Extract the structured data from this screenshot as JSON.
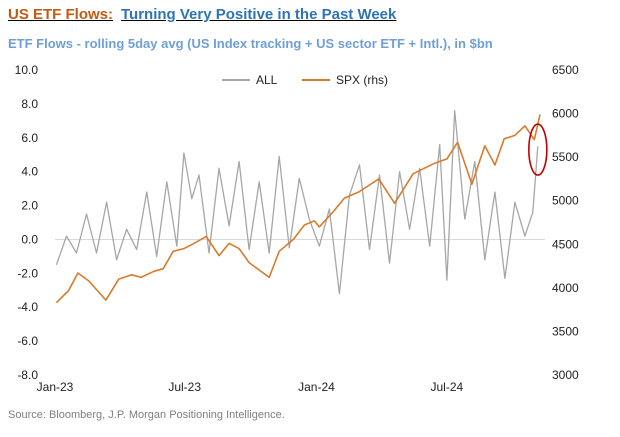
{
  "header": {
    "title_lead": "US ETF Flows:",
    "title_tail": "Turning Very Positive in the Past Week",
    "subtitle": "ETF Flows - rolling 5day avg (US Index tracking + US sector ETF + Intl.), in $bn"
  },
  "footer": {
    "source": "Source: Bloomberg, J.P. Morgan Positioning Intelligence."
  },
  "chart_data": {
    "type": "line",
    "title": "ETF Flows - rolling 5day avg (US Index tracking + US sector ETF + Intl.), in $bn",
    "x_tick_labels": [
      "Jan-23",
      "Jul-23",
      "Jan-24",
      "Jul-24"
    ],
    "x_tick_dates": [
      "2023-01-01",
      "2023-07-01",
      "2024-01-01",
      "2024-07-01"
    ],
    "x_range": [
      "2023-01-01",
      "2024-11-15"
    ],
    "y_left": {
      "ylim": [
        -8,
        10
      ],
      "ticks": [
        "-8.0",
        "-6.0",
        "-4.0",
        "-2.0",
        "0.0",
        "2.0",
        "4.0",
        "6.0",
        "8.0",
        "10.0"
      ]
    },
    "y_right": {
      "ylim": [
        3000,
        6500
      ],
      "ticks": [
        "3000",
        "3500",
        "4000",
        "4500",
        "5000",
        "5500",
        "6000",
        "6500"
      ]
    },
    "zero_line": true,
    "legend": {
      "placement": "top-center"
    },
    "series": [
      {
        "name": "ALL",
        "axis": "left",
        "color": "#a6a6a6",
        "points": [
          [
            "2023-01-03",
            -1.5
          ],
          [
            "2023-01-17",
            0.2
          ],
          [
            "2023-01-31",
            -0.8
          ],
          [
            "2023-02-14",
            1.5
          ],
          [
            "2023-02-28",
            -0.8
          ],
          [
            "2023-03-14",
            2.2
          ],
          [
            "2023-03-28",
            -1.2
          ],
          [
            "2023-04-11",
            0.6
          ],
          [
            "2023-04-25",
            -0.6
          ],
          [
            "2023-05-09",
            2.8
          ],
          [
            "2023-05-23",
            -1.0
          ],
          [
            "2023-06-06",
            3.4
          ],
          [
            "2023-06-20",
            -0.4
          ],
          [
            "2023-06-30",
            5.1
          ],
          [
            "2023-07-11",
            2.4
          ],
          [
            "2023-07-21",
            3.8
          ],
          [
            "2023-08-04",
            -0.8
          ],
          [
            "2023-08-18",
            4.2
          ],
          [
            "2023-09-01",
            0.8
          ],
          [
            "2023-09-15",
            4.6
          ],
          [
            "2023-09-29",
            -0.6
          ],
          [
            "2023-10-13",
            3.4
          ],
          [
            "2023-10-27",
            -0.8
          ],
          [
            "2023-11-10",
            4.9
          ],
          [
            "2023-11-24",
            -0.5
          ],
          [
            "2023-12-08",
            3.6
          ],
          [
            "2023-12-22",
            1.2
          ],
          [
            "2024-01-05",
            -0.4
          ],
          [
            "2024-01-19",
            1.8
          ],
          [
            "2024-02-02",
            -3.2
          ],
          [
            "2024-02-16",
            2.6
          ],
          [
            "2024-03-01",
            4.4
          ],
          [
            "2024-03-15",
            -0.6
          ],
          [
            "2024-03-29",
            3.8
          ],
          [
            "2024-04-12",
            -1.4
          ],
          [
            "2024-04-26",
            4.0
          ],
          [
            "2024-05-10",
            0.6
          ],
          [
            "2024-05-24",
            4.2
          ],
          [
            "2024-06-07",
            -0.4
          ],
          [
            "2024-06-21",
            5.6
          ],
          [
            "2024-07-01",
            -2.4
          ],
          [
            "2024-07-12",
            7.6
          ],
          [
            "2024-07-26",
            1.2
          ],
          [
            "2024-08-09",
            4.6
          ],
          [
            "2024-08-23",
            -1.2
          ],
          [
            "2024-09-06",
            2.8
          ],
          [
            "2024-09-20",
            -2.3
          ],
          [
            "2024-10-04",
            2.2
          ],
          [
            "2024-10-18",
            0.2
          ],
          [
            "2024-10-29",
            1.6
          ],
          [
            "2024-11-05",
            5.5
          ]
        ]
      },
      {
        "name": "SPX (rhs)",
        "axis": "right",
        "color": "#d97b2b",
        "points": [
          [
            "2023-01-03",
            3830
          ],
          [
            "2023-01-20",
            3970
          ],
          [
            "2023-02-02",
            4170
          ],
          [
            "2023-02-17",
            4080
          ],
          [
            "2023-03-01",
            3970
          ],
          [
            "2023-03-13",
            3860
          ],
          [
            "2023-03-31",
            4100
          ],
          [
            "2023-04-18",
            4150
          ],
          [
            "2023-05-01",
            4120
          ],
          [
            "2023-05-19",
            4190
          ],
          [
            "2023-06-01",
            4220
          ],
          [
            "2023-06-15",
            4420
          ],
          [
            "2023-06-30",
            4450
          ],
          [
            "2023-07-14",
            4510
          ],
          [
            "2023-07-31",
            4590
          ],
          [
            "2023-08-18",
            4370
          ],
          [
            "2023-09-01",
            4510
          ],
          [
            "2023-09-15",
            4450
          ],
          [
            "2023-09-29",
            4290
          ],
          [
            "2023-10-27",
            4120
          ],
          [
            "2023-11-10",
            4420
          ],
          [
            "2023-11-30",
            4560
          ],
          [
            "2023-12-15",
            4720
          ],
          [
            "2023-12-29",
            4770
          ],
          [
            "2024-01-05",
            4700
          ],
          [
            "2024-01-24",
            4870
          ],
          [
            "2024-02-09",
            5030
          ],
          [
            "2024-02-29",
            5100
          ],
          [
            "2024-03-28",
            5250
          ],
          [
            "2024-04-19",
            4970
          ],
          [
            "2024-05-15",
            5310
          ],
          [
            "2024-06-14",
            5430
          ],
          [
            "2024-07-01",
            5480
          ],
          [
            "2024-07-16",
            5670
          ],
          [
            "2024-08-05",
            5190
          ],
          [
            "2024-08-23",
            5630
          ],
          [
            "2024-09-06",
            5410
          ],
          [
            "2024-09-19",
            5710
          ],
          [
            "2024-10-04",
            5750
          ],
          [
            "2024-10-18",
            5860
          ],
          [
            "2024-10-31",
            5700
          ],
          [
            "2024-11-08",
            5990
          ]
        ]
      }
    ],
    "annotation": {
      "shape": "ellipse",
      "color": "#c00000",
      "at_date": "2024-11-05",
      "y_low": 3.8,
      "y_high": 6.8
    }
  }
}
